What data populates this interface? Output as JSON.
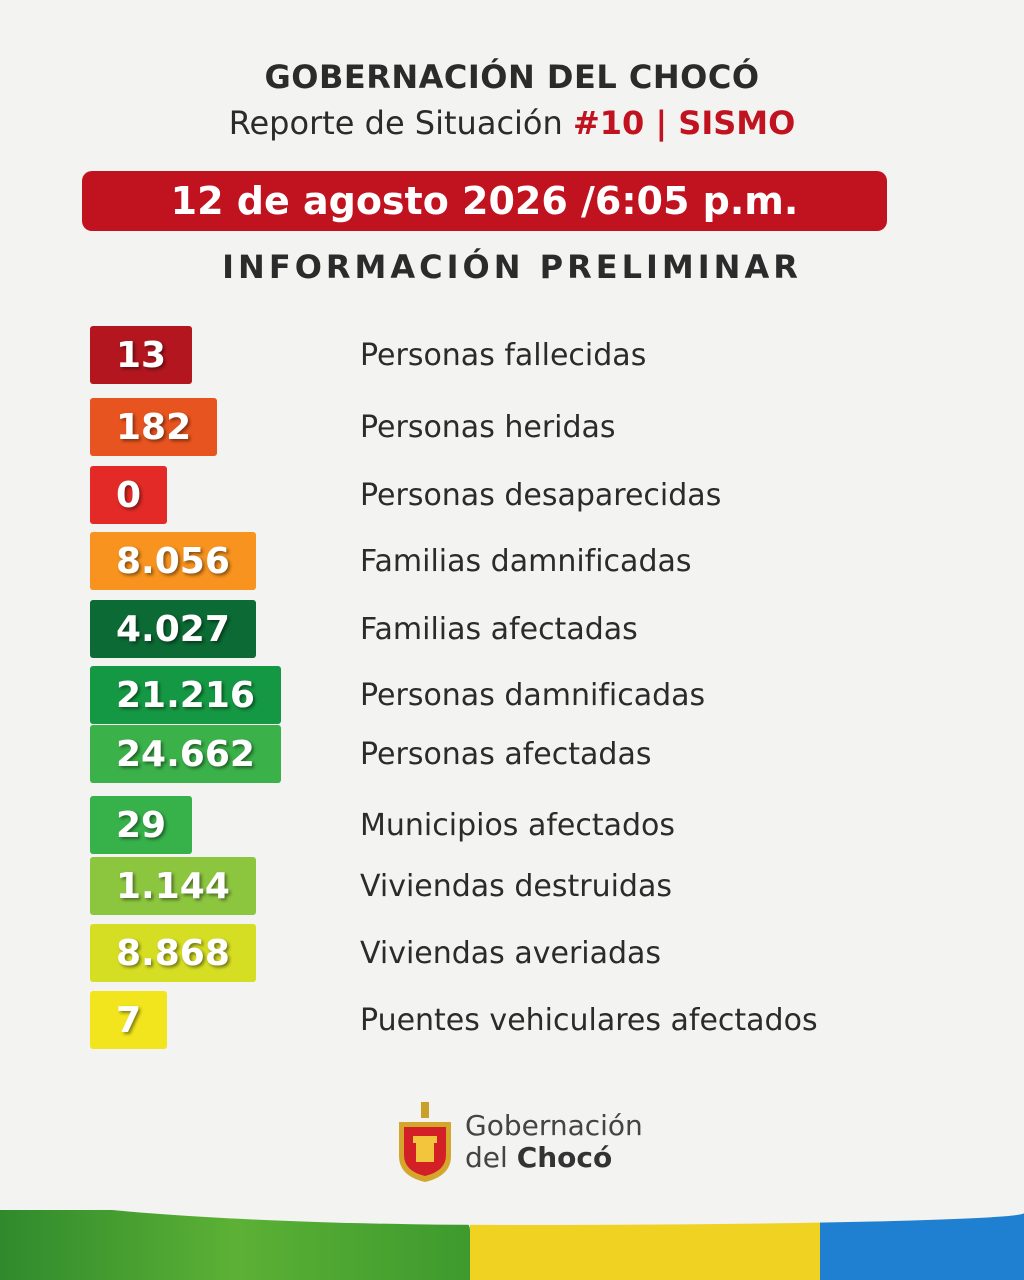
{
  "header": {
    "title": "GOBERNACIÓN DEL CHOCÓ",
    "subtitle": "Reporte de Situación",
    "subtitle_highlight": "#10 | SISMO",
    "date": "12 de agosto 2026 /6:05 p.m.",
    "heading": "INFORMACIÓN PRELIMINAR"
  },
  "items": [
    {
      "value": "13",
      "label": "Personas fallecidas",
      "color": "#b3161f"
    },
    {
      "value": "182",
      "label": "Personas heridas",
      "color": "#e8541f"
    },
    {
      "value": "0",
      "label": "Personas desaparecidas",
      "color": "#e32a26"
    },
    {
      "value": "8.056",
      "label": "Familias damnificadas",
      "color": "#f7931e"
    },
    {
      "value": "4.027",
      "label": "Familias afectadas",
      "color": "#0c6a34"
    },
    {
      "value": "21.216",
      "label": "Personas damnificadas",
      "color": "#159843"
    },
    {
      "value": "24.662",
      "label": "Personas afectadas",
      "color": "#3bb14a"
    },
    {
      "value": "29",
      "label": "Municipios afectados",
      "color": "#37b24a"
    },
    {
      "value": "1.144",
      "label": "Viviendas destruidas",
      "color": "#8cc63f"
    },
    {
      "value": "8.868",
      "label": "Viviendas averiadas",
      "color": "#d6de23"
    },
    {
      "value": "7",
      "label": "Puentes vehiculares afectados",
      "color": "#f3e51d"
    }
  ],
  "logo": {
    "line1": "Gobernación",
    "line2_prefix": "del",
    "line2_bold": "Chocó"
  }
}
